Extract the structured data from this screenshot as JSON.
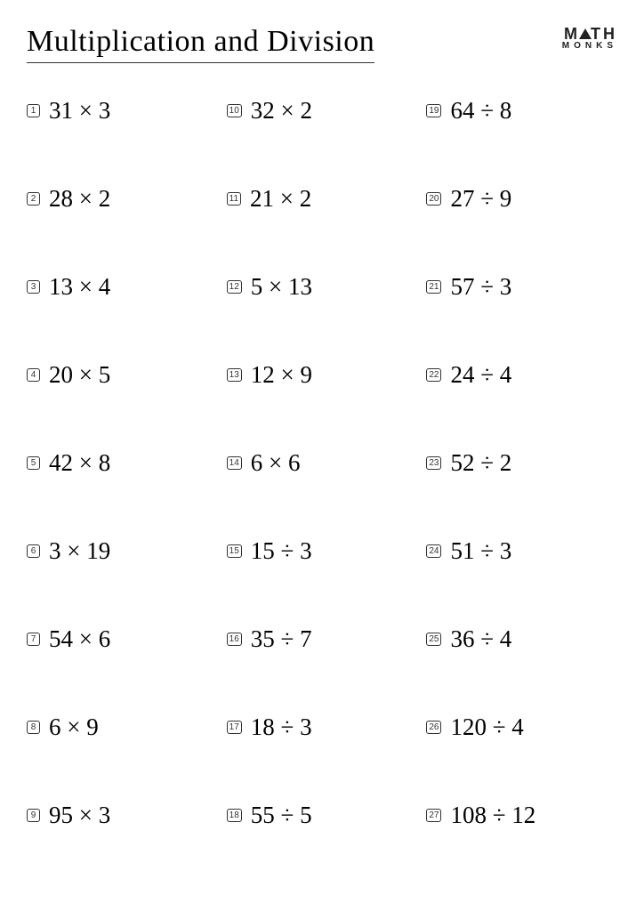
{
  "title": "Multiplication and Division",
  "logo": {
    "top_left": "M",
    "top_right": "TH",
    "bottom": "MONKS"
  },
  "problems": [
    {
      "n": "1",
      "expr": "31 × 3"
    },
    {
      "n": "2",
      "expr": "28 × 2"
    },
    {
      "n": "3",
      "expr": "13 × 4"
    },
    {
      "n": "4",
      "expr": "20 × 5"
    },
    {
      "n": "5",
      "expr": "42 × 8"
    },
    {
      "n": "6",
      "expr": "3 × 19"
    },
    {
      "n": "7",
      "expr": "54 × 6"
    },
    {
      "n": "8",
      "expr": "6 × 9"
    },
    {
      "n": "9",
      "expr": "95 × 3"
    },
    {
      "n": "10",
      "expr": "32 × 2"
    },
    {
      "n": "11",
      "expr": "21 × 2"
    },
    {
      "n": "12",
      "expr": "5 × 13"
    },
    {
      "n": "13",
      "expr": "12 × 9"
    },
    {
      "n": "14",
      "expr": "6 × 6"
    },
    {
      "n": "15",
      "expr": "15 ÷ 3"
    },
    {
      "n": "16",
      "expr": "35 ÷ 7"
    },
    {
      "n": "17",
      "expr": "18 ÷ 3"
    },
    {
      "n": "18",
      "expr": "55 ÷ 5"
    },
    {
      "n": "19",
      "expr": "64 ÷ 8"
    },
    {
      "n": "20",
      "expr": "27 ÷ 9"
    },
    {
      "n": "21",
      "expr": "57 ÷ 3"
    },
    {
      "n": "22",
      "expr": "24 ÷ 4"
    },
    {
      "n": "23",
      "expr": "52 ÷ 2"
    },
    {
      "n": "24",
      "expr": "51 ÷ 3"
    },
    {
      "n": "25",
      "expr": "36 ÷ 4"
    },
    {
      "n": "26",
      "expr": "120 ÷ 4"
    },
    {
      "n": "27",
      "expr": "108 ÷ 12"
    }
  ]
}
